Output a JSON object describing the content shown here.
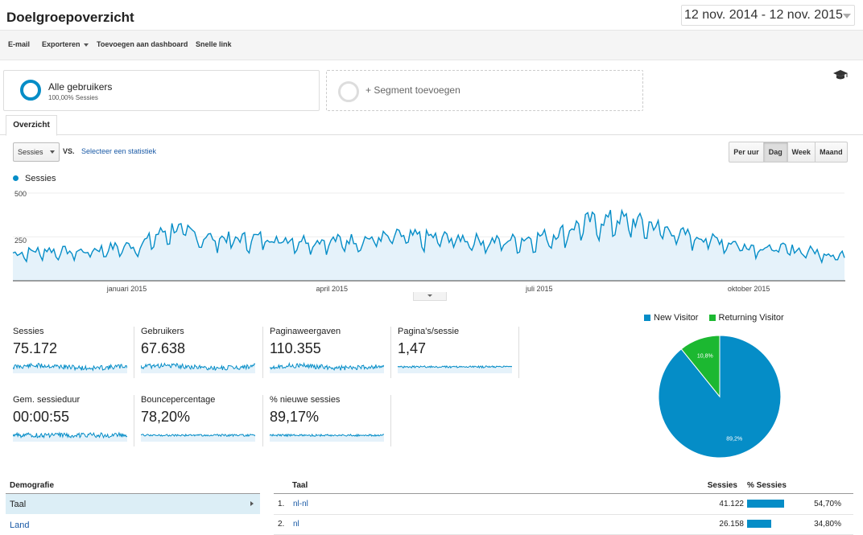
{
  "page": {
    "title": "Doelgroepoverzicht",
    "date_range": "12 nov. 2014 - 12 nov. 2015"
  },
  "toolbar": {
    "email": "E-mail",
    "export": "Exporteren",
    "add_dashboard": "Toevoegen aan dashboard",
    "shortcut": "Snelle link"
  },
  "segments": {
    "all_users": "Alle gebruikers",
    "all_users_sub": "100,00% Sessies",
    "add_segment": "+ Segment toevoegen"
  },
  "tabs": {
    "overview": "Overzicht"
  },
  "controls": {
    "metric": "Sessies",
    "vs": "VS.",
    "select_stat": "Selecteer een statistiek",
    "granularity": [
      "Per uur",
      "Dag",
      "Week",
      "Maand"
    ],
    "active_granularity": "Dag"
  },
  "colors": {
    "primary": "#058dc7",
    "secondary": "#1cb831",
    "fill": "#e5f2fa",
    "link": "#1a5aa6"
  },
  "chart_data": {
    "type": "area",
    "title": "",
    "legend": [
      "Sessies"
    ],
    "y_ticks": [
      "500",
      "250"
    ],
    "ylim": [
      0,
      500
    ],
    "x_ticks": [
      {
        "label": "januari 2015",
        "date": "2015-01-01"
      },
      {
        "label": "april 2015",
        "date": "2015-04-01"
      },
      {
        "label": "juli 2015",
        "date": "2015-07-01"
      },
      {
        "label": "oktober 2015",
        "date": "2015-10-01"
      }
    ],
    "x_range": [
      "2014-11-12",
      "2015-11-12"
    ],
    "series": [
      {
        "name": "Sessies",
        "x": [
          "2014-11-12",
          "2014-11-26",
          "2014-12-10",
          "2014-12-24",
          "2015-01-07",
          "2015-01-14",
          "2015-01-21",
          "2015-01-28",
          "2015-02-04",
          "2015-02-18",
          "2015-03-04",
          "2015-03-18",
          "2015-04-01",
          "2015-04-15",
          "2015-04-29",
          "2015-05-13",
          "2015-05-27",
          "2015-06-10",
          "2015-06-24",
          "2015-07-08",
          "2015-07-22",
          "2015-08-05",
          "2015-08-19",
          "2015-09-02",
          "2015-09-16",
          "2015-09-30",
          "2015-10-14",
          "2015-10-28",
          "2015-11-12"
        ],
        "y": [
          150,
          170,
          160,
          180,
          200,
          250,
          290,
          270,
          240,
          230,
          240,
          225,
          220,
          230,
          245,
          240,
          235,
          215,
          230,
          255,
          325,
          340,
          310,
          255,
          230,
          195,
          180,
          165,
          140
        ]
      }
    ]
  },
  "kpis": [
    {
      "label": "Sessies",
      "value": "75.172"
    },
    {
      "label": "Gebruikers",
      "value": "67.638"
    },
    {
      "label": "Paginaweergaven",
      "value": "110.355"
    },
    {
      "label": "Pagina's/sessie",
      "value": "1,47"
    },
    {
      "label": "Gem. sessieduur",
      "value": "00:00:55"
    },
    {
      "label": "Bouncepercentage",
      "value": "78,20%"
    },
    {
      "label": "% nieuwe sessies",
      "value": "89,17%"
    }
  ],
  "pie": {
    "legend": [
      {
        "name": "New Visitor",
        "color": "#058dc7"
      },
      {
        "name": "Returning Visitor",
        "color": "#1cb831"
      }
    ],
    "slices": [
      {
        "name": "New Visitor",
        "value": 89.2,
        "label": "89,2%"
      },
      {
        "name": "Returning Visitor",
        "value": 10.8,
        "label": "10,8%"
      }
    ]
  },
  "demographics": {
    "header": "Demografie",
    "items": [
      "Taal",
      "Land"
    ]
  },
  "language_table": {
    "headers": {
      "language": "Taal",
      "sessions": "Sessies",
      "pct": "% Sessies"
    },
    "rows": [
      {
        "index": "1.",
        "language": "nl-nl",
        "sessions": "41.122",
        "pct": "54,70%",
        "pct_value": 54.7
      },
      {
        "index": "2.",
        "language": "nl",
        "sessions": "26.158",
        "pct": "34,80%",
        "pct_value": 34.8
      }
    ]
  }
}
